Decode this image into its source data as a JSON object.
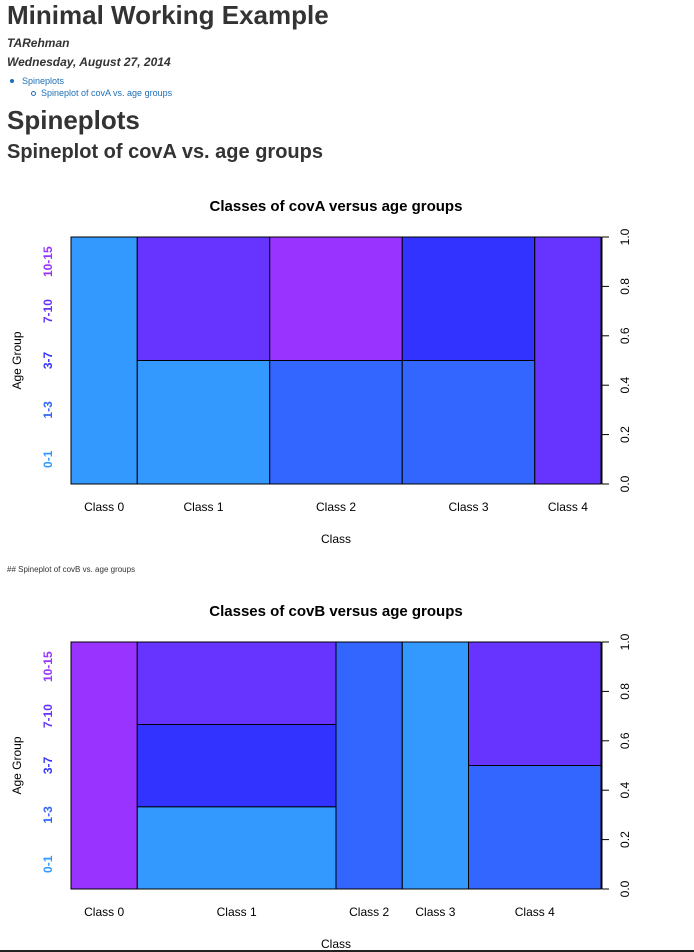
{
  "document": {
    "title": "Minimal Working Example",
    "author": "TARehman",
    "date": "Wednesday, August 27, 2014",
    "toc": [
      {
        "label": "Spineplots",
        "level": 1
      },
      {
        "label": "Spineplot of covA vs. age groups",
        "level": 2
      }
    ],
    "heading1": "Spineplots",
    "heading2": "Spineplot of covA vs. age groups",
    "code_text": "## Spineplot of covB vs. age groups"
  },
  "colors": {
    "ag_0_1": "#3399ff",
    "ag_1_3": "#3366ff",
    "ag_3_7": "#3333ff",
    "ag_7_10": "#6633ff",
    "ag_10_15": "#9933ff",
    "link": "#1d6fb8"
  },
  "chart_data": [
    {
      "type": "spineplot",
      "title": "Classes of covA versus age groups",
      "xlabel": "Class",
      "ylabel": "Age Group",
      "categories": [
        "Class 0",
        "Class 1",
        "Class 2",
        "Class 3",
        "Class 4"
      ],
      "category_widths": [
        0.125,
        0.25,
        0.25,
        0.25,
        0.125
      ],
      "age_groups": [
        "0-1",
        "1-3",
        "3-7",
        "7-10",
        "10-15"
      ],
      "age_group_colors": [
        "#3399ff",
        "#3366ff",
        "#3333ff",
        "#6633ff",
        "#9933ff"
      ],
      "stacks": [
        [
          {
            "group": "0-1",
            "value": 1.0
          }
        ],
        [
          {
            "group": "0-1",
            "value": 0.5
          },
          {
            "group": "7-10",
            "value": 0.5
          }
        ],
        [
          {
            "group": "1-3",
            "value": 0.5
          },
          {
            "group": "10-15",
            "value": 0.5
          }
        ],
        [
          {
            "group": "1-3",
            "value": 0.5
          },
          {
            "group": "3-7",
            "value": 0.5
          }
        ],
        [
          {
            "group": "7-10",
            "value": 1.0
          }
        ]
      ],
      "right_axis_ticks": [
        "0.0",
        "0.2",
        "0.4",
        "0.6",
        "0.8",
        "1.0"
      ],
      "ylim": [
        0,
        1
      ]
    },
    {
      "type": "spineplot",
      "title": "Classes of covB versus age groups",
      "xlabel": "Class",
      "ylabel": "Age Group",
      "categories": [
        "Class 0",
        "Class 1",
        "Class 2",
        "Class 3",
        "Class 4"
      ],
      "category_widths": [
        0.125,
        0.375,
        0.125,
        0.125,
        0.25
      ],
      "age_groups": [
        "0-1",
        "1-3",
        "3-7",
        "7-10",
        "10-15"
      ],
      "age_group_colors": [
        "#3399ff",
        "#3366ff",
        "#3333ff",
        "#6633ff",
        "#9933ff"
      ],
      "stacks": [
        [
          {
            "group": "10-15",
            "value": 1.0
          }
        ],
        [
          {
            "group": "0-1",
            "value": 0.333
          },
          {
            "group": "3-7",
            "value": 0.333
          },
          {
            "group": "7-10",
            "value": 0.334
          }
        ],
        [
          {
            "group": "1-3",
            "value": 1.0
          }
        ],
        [
          {
            "group": "0-1",
            "value": 1.0
          }
        ],
        [
          {
            "group": "1-3",
            "value": 0.5
          },
          {
            "group": "7-10",
            "value": 0.5
          }
        ]
      ],
      "right_axis_ticks": [
        "0.0",
        "0.2",
        "0.4",
        "0.6",
        "0.8",
        "1.0"
      ],
      "ylim": [
        0,
        1
      ]
    }
  ]
}
